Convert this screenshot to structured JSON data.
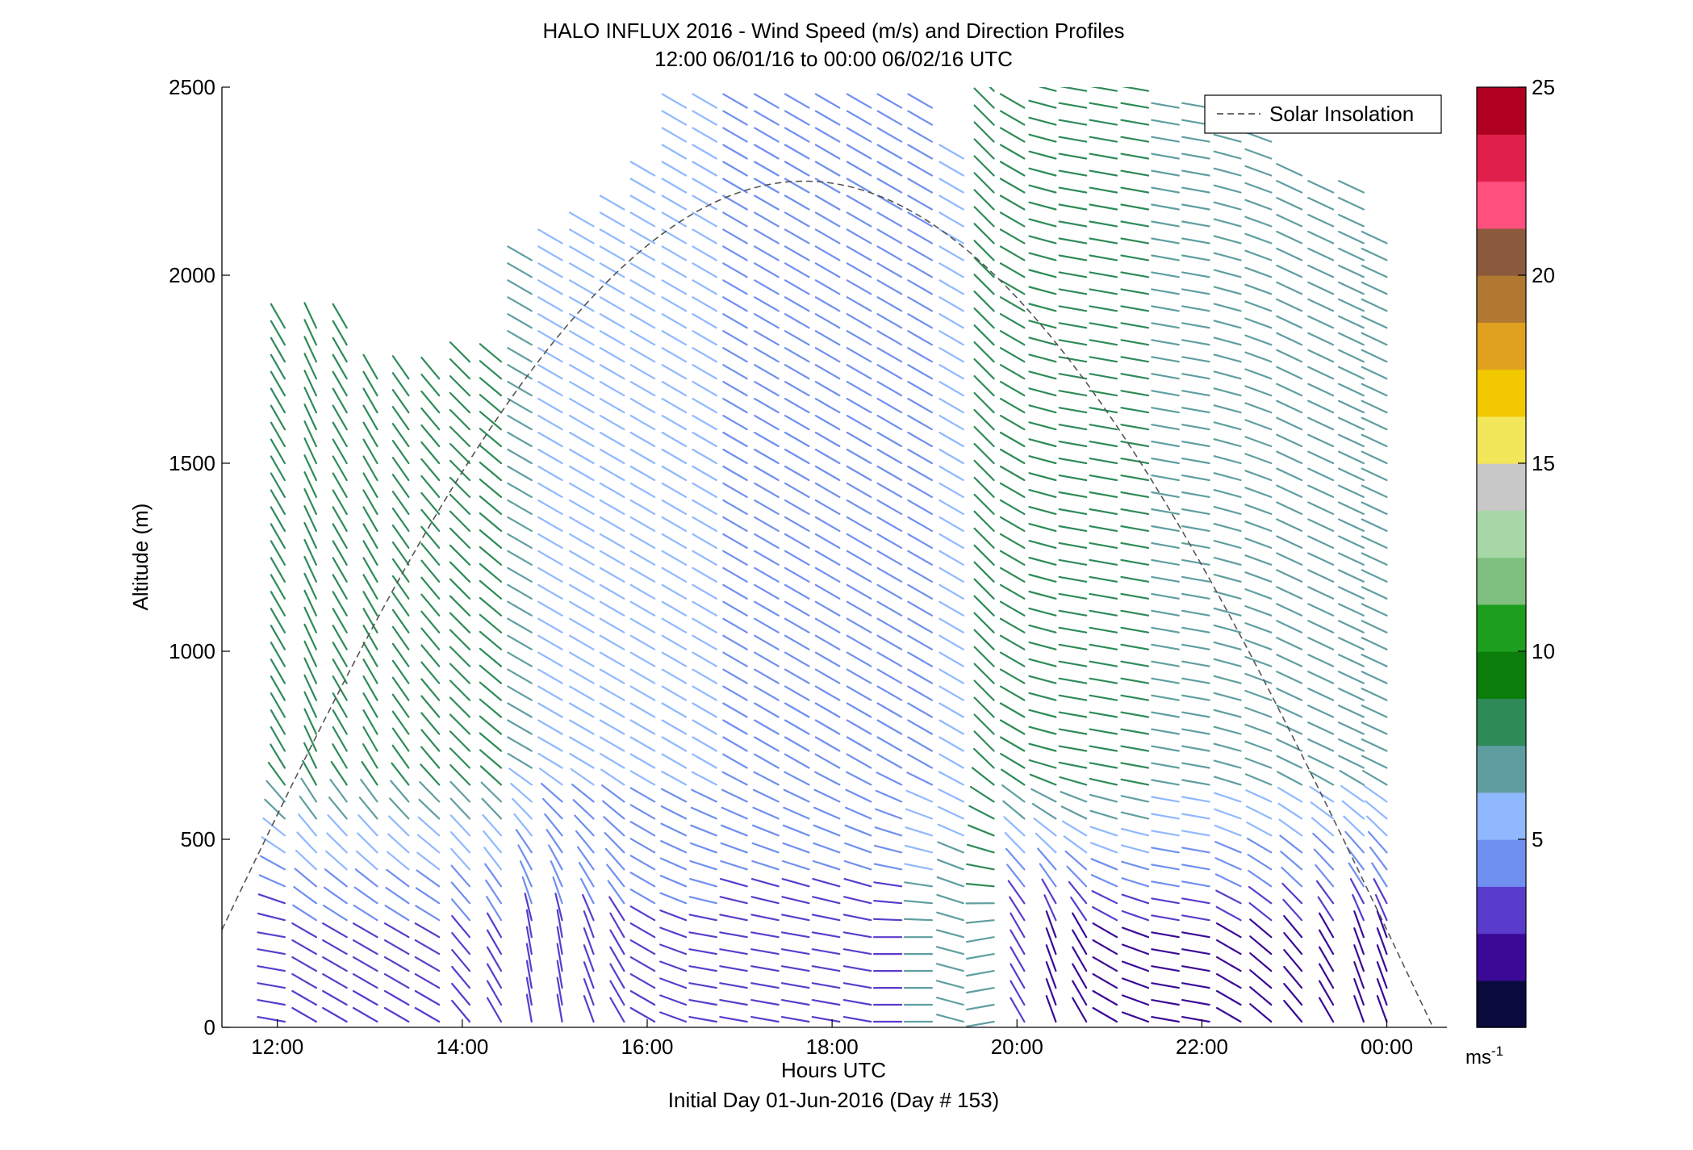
{
  "title_line1": "HALO INFLUX 2016 - Wind Speed (m/s) and Direction Profiles",
  "title_line2": "12:00 06/01/16 to 00:00 06/02/16  UTC",
  "xlabel": "Hours UTC",
  "xlabel2": "Initial Day 01-Jun-2016 (Day # 153)",
  "ylabel": "Altitude (m)",
  "legend_label": "Solar Insolation",
  "colorbar_unit": "ms",
  "colorbar_unit_exp": "-1",
  "colors": {
    "colormap": [
      "#0a0a3c",
      "#3a0a96",
      "#5a3ccc",
      "#6f8ff0",
      "#8fb8ff",
      "#5f9ea0",
      "#2e8b57",
      "#0a7d0a",
      "#1e9e1e",
      "#7fbf7f",
      "#a8d8a8",
      "#c8c8c8",
      "#f2e65a",
      "#f2c800",
      "#e0a020",
      "#b07830",
      "#8b5a3c",
      "#ff4f7f",
      "#e0204a",
      "#b00020"
    ]
  },
  "chart_data": {
    "type": "wind_barb_profile",
    "x_range_hours": [
      11.4,
      24.65
    ],
    "y_range_m": [
      0,
      2500
    ],
    "x_ticks": [
      "12:00",
      "14:00",
      "16:00",
      "18:00",
      "20:00",
      "22:00",
      "00:00"
    ],
    "x_tick_hours": [
      12,
      14,
      16,
      18,
      20,
      22,
      24
    ],
    "y_ticks": [
      "0",
      "500",
      "1000",
      "1500",
      "2000",
      "2500"
    ],
    "colorbar": {
      "min": 0,
      "max": 25,
      "ticks": [
        "5",
        "10",
        "15",
        "20",
        "25"
      ],
      "tick_values": [
        5,
        10,
        15,
        20,
        25
      ]
    },
    "solar_insolation_peak_altitude_m": 2250,
    "solar_insolation_peak_hour": 17.7,
    "profiles": [
      {
        "hour": 12.08,
        "top": 1900,
        "low": [
          2,
          2
        ],
        "dir_low": 280,
        "dir_up": 330,
        "spd_up": 8
      },
      {
        "hour": 12.42,
        "top": 1900,
        "low": [
          2,
          3
        ],
        "dir_low": 300,
        "dir_up": 335,
        "spd_up": 8
      },
      {
        "hour": 12.75,
        "top": 1900,
        "low": [
          2,
          3
        ],
        "dir_low": 300,
        "dir_up": 330,
        "spd_up": 8
      },
      {
        "hour": 13.08,
        "top": 1750,
        "low": [
          2,
          3
        ],
        "dir_low": 300,
        "dir_up": 330,
        "spd_up": 8
      },
      {
        "hour": 13.42,
        "top": 1750,
        "low": [
          2,
          3
        ],
        "dir_low": 300,
        "dir_up": 325,
        "spd_up": 8
      },
      {
        "hour": 13.75,
        "top": 1750,
        "low": [
          2,
          3
        ],
        "dir_low": 300,
        "dir_up": 320,
        "spd_up": 8
      },
      {
        "hour": 14.08,
        "top": 1800,
        "low": [
          2,
          3
        ],
        "dir_low": 320,
        "dir_up": 315,
        "spd_up": 8
      },
      {
        "hour": 14.42,
        "top": 1800,
        "low": [
          2,
          3
        ],
        "dir_low": 330,
        "dir_up": 310,
        "spd_up": 8
      },
      {
        "hour": 14.75,
        "top": 2050,
        "low": [
          2,
          3
        ],
        "dir_low": 350,
        "dir_up": 300,
        "spd_up": 6
      },
      {
        "hour": 15.08,
        "top": 2100,
        "low": [
          2,
          3
        ],
        "dir_low": 350,
        "dir_up": 300,
        "spd_up": 5
      },
      {
        "hour": 15.42,
        "top": 2150,
        "low": [
          3,
          3
        ],
        "dir_low": 340,
        "dir_up": 300,
        "spd_up": 5
      },
      {
        "hour": 15.75,
        "top": 2200,
        "low": [
          3,
          3
        ],
        "dir_low": 330,
        "dir_up": 300,
        "spd_up": 5
      },
      {
        "hour": 16.08,
        "top": 2300,
        "low": [
          3,
          3
        ],
        "dir_low": 300,
        "dir_up": 300,
        "spd_up": 5
      },
      {
        "hour": 16.42,
        "top": 2450,
        "low": [
          3,
          3
        ],
        "dir_low": 290,
        "dir_up": 300,
        "spd_up": 5
      },
      {
        "hour": 16.75,
        "top": 2450,
        "low": [
          3,
          3
        ],
        "dir_low": 280,
        "dir_up": 300,
        "spd_up": 5
      },
      {
        "hour": 17.08,
        "top": 2450,
        "low": [
          3,
          3
        ],
        "dir_low": 280,
        "dir_up": 300,
        "spd_up": 4
      },
      {
        "hour": 17.42,
        "top": 2450,
        "low": [
          3,
          3
        ],
        "dir_low": 280,
        "dir_up": 300,
        "spd_up": 4
      },
      {
        "hour": 17.75,
        "top": 2450,
        "low": [
          3,
          3
        ],
        "dir_low": 280,
        "dir_up": 300,
        "spd_up": 4
      },
      {
        "hour": 18.08,
        "top": 2450,
        "low": [
          3,
          3
        ],
        "dir_low": 280,
        "dir_up": 300,
        "spd_up": 4
      },
      {
        "hour": 18.42,
        "top": 2450,
        "low": [
          3,
          3
        ],
        "dir_low": 280,
        "dir_up": 300,
        "spd_up": 4
      },
      {
        "hour": 18.75,
        "top": 2450,
        "low": [
          3,
          3
        ],
        "dir_low": 270,
        "dir_up": 300,
        "spd_up": 4
      },
      {
        "hour": 19.08,
        "top": 2450,
        "low": [
          7,
          7
        ],
        "dir_low": 270,
        "dir_up": 300,
        "spd_up": 4
      },
      {
        "hour": 19.42,
        "top": 2350,
        "low": [
          7,
          7
        ],
        "dir_low": 285,
        "dir_up": 300,
        "spd_up": 5
      },
      {
        "hour": 19.75,
        "top": 2500,
        "low": [
          7,
          7
        ],
        "dir_low": 260,
        "dir_up": 315,
        "spd_up": 8
      },
      {
        "hour": 20.08,
        "top": 2450,
        "low": [
          2,
          2
        ],
        "dir_low": 330,
        "dir_up": 300,
        "spd_up": 8
      },
      {
        "hour": 20.42,
        "top": 2500,
        "low": [
          1,
          2
        ],
        "dir_low": 340,
        "dir_up": 285,
        "spd_up": 8
      },
      {
        "hour": 20.75,
        "top": 2500,
        "low": [
          1,
          2
        ],
        "dir_low": 330,
        "dir_up": 280,
        "spd_up": 8
      },
      {
        "hour": 21.08,
        "top": 2500,
        "low": [
          1,
          2
        ],
        "dir_low": 300,
        "dir_up": 280,
        "spd_up": 8
      },
      {
        "hour": 21.42,
        "top": 2500,
        "low": [
          1,
          2
        ],
        "dir_low": 290,
        "dir_up": 280,
        "spd_up": 8
      },
      {
        "hour": 21.75,
        "top": 2450,
        "low": [
          1,
          2
        ],
        "dir_low": 280,
        "dir_up": 280,
        "spd_up": 7
      },
      {
        "hour": 22.08,
        "top": 2450,
        "low": [
          1,
          2
        ],
        "dir_low": 280,
        "dir_up": 280,
        "spd_up": 7
      },
      {
        "hour": 22.42,
        "top": 2450,
        "low": [
          1,
          2
        ],
        "dir_low": 300,
        "dir_up": 285,
        "spd_up": 7
      },
      {
        "hour": 22.75,
        "top": 2450,
        "low": [
          1,
          2
        ],
        "dir_low": 310,
        "dir_up": 290,
        "spd_up": 7
      },
      {
        "hour": 23.08,
        "top": 2300,
        "low": [
          1,
          2
        ],
        "dir_low": 320,
        "dir_up": 295,
        "spd_up": 7
      },
      {
        "hour": 23.42,
        "top": 2250,
        "low": [
          1,
          2
        ],
        "dir_low": 330,
        "dir_up": 295,
        "spd_up": 7
      },
      {
        "hour": 23.75,
        "top": 2250,
        "low": [
          1,
          2
        ],
        "dir_low": 340,
        "dir_up": 295,
        "spd_up": 7
      },
      {
        "hour": 24.0,
        "top": 2100,
        "low": [
          1,
          2
        ],
        "dir_low": 340,
        "dir_up": 295,
        "spd_up": 7
      }
    ]
  }
}
